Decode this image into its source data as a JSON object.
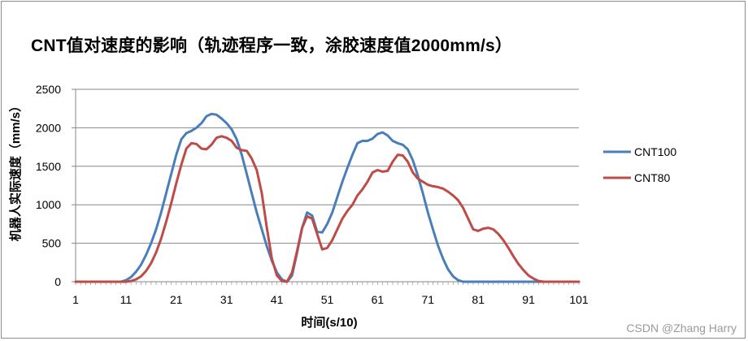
{
  "chart_data": {
    "type": "line",
    "title": "CNT值对速度的影响（轨迹程序一致，涂胶速度值2000mm/s）",
    "xlabel": "时间(s/10)",
    "ylabel": "机器人实际速度（mm/s）",
    "xlim": [
      1,
      101
    ],
    "ylim": [
      0,
      2500
    ],
    "yticks": [
      0,
      500,
      1000,
      1500,
      2000,
      2500
    ],
    "xticks": [
      1,
      11,
      21,
      31,
      41,
      51,
      61,
      71,
      81,
      91,
      101
    ],
    "grid": "horizontal",
    "legend_position": "right",
    "series": [
      {
        "name": "CNT100",
        "color": "#4a7ebb",
        "x": [
          1,
          10,
          11,
          12,
          13,
          14,
          15,
          16,
          17,
          18,
          19,
          20,
          21,
          22,
          23,
          24,
          25,
          26,
          27,
          28,
          29,
          30,
          31,
          32,
          33,
          34,
          35,
          36,
          37,
          38,
          39,
          40,
          41,
          42,
          43,
          44,
          45,
          46,
          47,
          48,
          49,
          50,
          51,
          52,
          53,
          54,
          55,
          56,
          57,
          58,
          59,
          60,
          61,
          62,
          63,
          64,
          65,
          66,
          67,
          68,
          69,
          70,
          71,
          72,
          73,
          74,
          75,
          76,
          77,
          78,
          79,
          80,
          81,
          82,
          83,
          101
        ],
        "values": [
          0,
          0,
          20,
          60,
          130,
          220,
          350,
          500,
          680,
          900,
          1150,
          1400,
          1650,
          1850,
          1930,
          1960,
          2000,
          2060,
          2150,
          2180,
          2170,
          2120,
          2060,
          1980,
          1850,
          1650,
          1400,
          1150,
          900,
          680,
          460,
          270,
          120,
          30,
          0,
          80,
          380,
          700,
          900,
          860,
          650,
          640,
          750,
          900,
          1100,
          1300,
          1480,
          1650,
          1800,
          1830,
          1830,
          1860,
          1920,
          1940,
          1900,
          1830,
          1800,
          1780,
          1720,
          1580,
          1380,
          1150,
          900,
          680,
          470,
          300,
          160,
          70,
          20,
          0,
          0,
          0,
          0,
          0,
          0,
          0
        ],
        "x_offset_note": ""
      },
      {
        "name": "CNT80",
        "color": "#be4b48",
        "x": [
          1,
          10,
          11,
          12,
          13,
          14,
          15,
          16,
          17,
          18,
          19,
          20,
          21,
          22,
          23,
          24,
          25,
          26,
          27,
          28,
          29,
          30,
          31,
          32,
          33,
          34,
          35,
          36,
          37,
          38,
          39,
          40,
          41,
          42,
          43,
          44,
          45,
          46,
          47,
          48,
          49,
          50,
          51,
          52,
          53,
          54,
          55,
          56,
          57,
          58,
          59,
          60,
          61,
          62,
          63,
          64,
          65,
          66,
          67,
          68,
          69,
          70,
          71,
          72,
          73,
          74,
          75,
          76,
          77,
          78,
          79,
          80,
          81,
          82,
          83,
          84,
          85,
          86,
          87,
          88,
          89,
          90,
          91,
          92,
          93,
          94,
          95,
          96,
          97,
          98,
          99,
          100,
          101
        ],
        "values": [
          0,
          0,
          0,
          10,
          30,
          70,
          140,
          240,
          380,
          560,
          780,
          1020,
          1280,
          1520,
          1730,
          1800,
          1790,
          1730,
          1720,
          1780,
          1870,
          1890,
          1870,
          1830,
          1740,
          1710,
          1700,
          1600,
          1450,
          1150,
          700,
          300,
          80,
          10,
          0,
          120,
          400,
          700,
          850,
          820,
          620,
          420,
          440,
          540,
          680,
          820,
          920,
          1000,
          1120,
          1200,
          1300,
          1420,
          1450,
          1430,
          1440,
          1560,
          1650,
          1640,
          1560,
          1420,
          1340,
          1300,
          1260,
          1240,
          1230,
          1210,
          1170,
          1120,
          1060,
          960,
          820,
          680,
          660,
          690,
          700,
          680,
          620,
          540,
          440,
          330,
          230,
          150,
          80,
          40,
          10,
          0,
          0,
          0,
          0,
          0,
          0,
          0,
          0
        ],
        "x_offset_note": ""
      }
    ]
  }
}
